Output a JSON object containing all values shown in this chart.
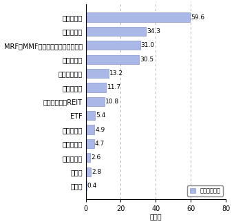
{
  "categories": [
    "無回答",
    "その他",
    "派生商品型",
    "内外債券型",
    "転換社債型",
    "ETF",
    "不動産投信：REIT",
    "国内債券型",
    "外国公社債型",
    "バランス型",
    "MRF・MMFまたは中期国債ファンド",
    "外国株式型",
    "国内株式型"
  ],
  "values": [
    0.4,
    2.8,
    2.6,
    4.7,
    4.9,
    5.4,
    10.8,
    11.7,
    13.2,
    30.5,
    31.0,
    34.3,
    59.6
  ],
  "bar_color": "#aab8e8",
  "bar_edge_color": "#8896cc",
  "xlabel": "（％）",
  "xlim": [
    0,
    80
  ],
  "xticks": [
    0,
    20,
    40,
    60,
    80
  ],
  "legend_label": "：購入経験者",
  "grid_color": "#aaaaaa",
  "background_color": "#ffffff",
  "value_fontsize": 6.5,
  "label_fontsize": 7,
  "tick_fontsize": 7
}
